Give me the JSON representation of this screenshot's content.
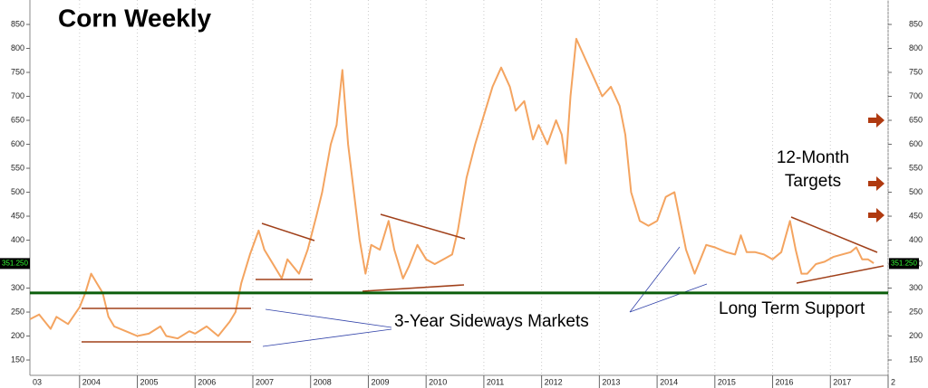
{
  "chart_data": {
    "type": "line",
    "title": "Corn Weekly",
    "x": [
      2003.14,
      2003.3,
      2003.5,
      2003.6,
      2003.8,
      2004.0,
      2004.1,
      2004.2,
      2004.3,
      2004.4,
      2004.5,
      2004.6,
      2004.8,
      2005.0,
      2005.2,
      2005.4,
      2005.5,
      2005.7,
      2005.9,
      2006.0,
      2006.2,
      2006.4,
      2006.6,
      2006.7,
      2006.8,
      2006.95,
      2007.1,
      2007.2,
      2007.3,
      2007.5,
      2007.6,
      2007.8,
      2007.95,
      2008.1,
      2008.2,
      2008.35,
      2008.45,
      2008.55,
      2008.65,
      2008.75,
      2008.85,
      2008.95,
      2009.05,
      2009.2,
      2009.35,
      2009.45,
      2009.6,
      2009.7,
      2009.85,
      2010.0,
      2010.15,
      2010.3,
      2010.45,
      2010.55,
      2010.7,
      2010.85,
      2011.0,
      2011.15,
      2011.3,
      2011.45,
      2011.55,
      2011.7,
      2011.85,
      2011.95,
      2012.1,
      2012.25,
      2012.35,
      2012.42,
      2012.5,
      2012.6,
      2012.75,
      2012.9,
      2013.05,
      2013.2,
      2013.35,
      2013.45,
      2013.55,
      2013.7,
      2013.85,
      2014.0,
      2014.15,
      2014.3,
      2014.4,
      2014.5,
      2014.65,
      2014.75,
      2014.85,
      2015.0,
      2015.2,
      2015.35,
      2015.45,
      2015.55,
      2015.7,
      2015.85,
      2016.0,
      2016.15,
      2016.3,
      2016.4,
      2016.5,
      2016.6,
      2016.75,
      2016.9,
      2017.05,
      2017.2,
      2017.35,
      2017.45,
      2017.55,
      2017.65,
      2017.75
    ],
    "values": [
      235,
      245,
      215,
      240,
      225,
      260,
      290,
      330,
      310,
      290,
      240,
      220,
      210,
      200,
      205,
      220,
      200,
      195,
      210,
      205,
      220,
      200,
      230,
      250,
      310,
      370,
      420,
      380,
      360,
      320,
      360,
      330,
      380,
      450,
      500,
      600,
      640,
      755,
      600,
      500,
      400,
      330,
      390,
      380,
      440,
      380,
      320,
      345,
      390,
      360,
      350,
      360,
      370,
      420,
      530,
      600,
      660,
      720,
      760,
      720,
      670,
      690,
      610,
      640,
      600,
      650,
      620,
      560,
      700,
      820,
      780,
      740,
      700,
      720,
      680,
      620,
      500,
      440,
      430,
      440,
      490,
      500,
      440,
      380,
      330,
      360,
      390,
      385,
      375,
      370,
      410,
      375,
      375,
      370,
      360,
      375,
      440,
      380,
      330,
      330,
      350,
      355,
      365,
      370,
      375,
      385,
      360,
      360,
      352
    ],
    "color": "#f4a460",
    "xlim": [
      2003.14,
      2018.0
    ],
    "xticks": [
      {
        "value": 2003,
        "label": "03"
      },
      2004,
      2005,
      2006,
      2007,
      2008,
      2009,
      2010,
      2011,
      2012,
      2013,
      2014,
      2015,
      2016,
      2017,
      {
        "value": 2018,
        "label": "2"
      }
    ],
    "ylim": [
      118,
      901
    ],
    "yticks": [
      150,
      200,
      250,
      300,
      350,
      400,
      450,
      500,
      550,
      600,
      650,
      700,
      750,
      800,
      850
    ],
    "grid": true,
    "support_level": 290,
    "current_price": {
      "value": 351.25,
      "label": "351.250"
    },
    "annotations": [
      "12-Month",
      "Targets",
      "3-Year Sideways Markets",
      "Long Term Support"
    ]
  }
}
